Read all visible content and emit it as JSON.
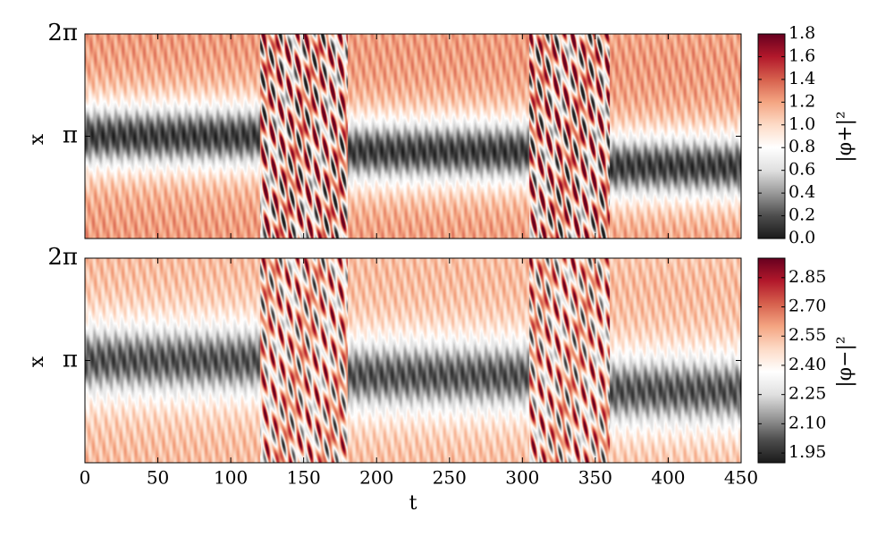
{
  "chart_data": [
    {
      "type": "heatmap",
      "ylabel": "x",
      "xlabel": "",
      "xlim": [
        0,
        450
      ],
      "x_ticks": [
        0,
        50,
        100,
        150,
        200,
        250,
        300,
        350,
        400,
        450
      ],
      "x_tick_labels_shown": false,
      "y_ticks": [
        {
          "value": 3.14159,
          "label": "π"
        },
        {
          "value": 6.28319,
          "label": "2π"
        }
      ],
      "ylim": [
        0,
        6.28319
      ],
      "colorbar": {
        "label": "|φ+|²",
        "range": [
          0.0,
          1.8
        ],
        "ticks": [
          "0.0",
          "0.2",
          "0.4",
          "0.6",
          "0.8",
          "1.0",
          "1.2",
          "1.4",
          "1.6",
          "1.8"
        ],
        "colormap": [
          "#1a1a1a",
          "#4d4d4d",
          "#999999",
          "#e0e0e0",
          "#ffffff",
          "#fddbc7",
          "#f4a582",
          "#d6604d",
          "#b2182b",
          "#67001f"
        ]
      },
      "structure": {
        "dark_band_center_start": 3.14159,
        "dark_band_center_end": 2.2,
        "transition_windows": [
          [
            120,
            180
          ],
          [
            305,
            360
          ]
        ],
        "background_value": 1.1,
        "min_value": 0.0,
        "max_value": 1.8
      }
    },
    {
      "type": "heatmap",
      "ylabel": "x",
      "xlabel": "t",
      "xlim": [
        0,
        450
      ],
      "x_ticks": [
        0,
        50,
        100,
        150,
        200,
        250,
        300,
        350,
        400,
        450
      ],
      "x_tick_labels": [
        "0",
        "50",
        "100",
        "150",
        "200",
        "250",
        "300",
        "350",
        "400",
        "450"
      ],
      "y_ticks": [
        {
          "value": 3.14159,
          "label": "π"
        },
        {
          "value": 6.28319,
          "label": "2π"
        }
      ],
      "ylim": [
        0,
        6.28319
      ],
      "colorbar": {
        "label": "|φ−|²",
        "range": [
          1.9,
          2.95
        ],
        "ticks": [
          "1.95",
          "2.10",
          "2.25",
          "2.40",
          "2.55",
          "2.70",
          "2.85"
        ],
        "colormap": [
          "#1a1a1a",
          "#4d4d4d",
          "#999999",
          "#e0e0e0",
          "#ffffff",
          "#fddbc7",
          "#f4a582",
          "#d6604d",
          "#b2182b",
          "#67001f"
        ]
      },
      "structure": {
        "dark_band_center_start": 3.14159,
        "dark_band_center_end": 2.2,
        "transition_windows": [
          [
            120,
            180
          ],
          [
            305,
            360
          ]
        ],
        "background_value": 2.5,
        "min_value": 1.9,
        "max_value": 2.95
      }
    }
  ]
}
